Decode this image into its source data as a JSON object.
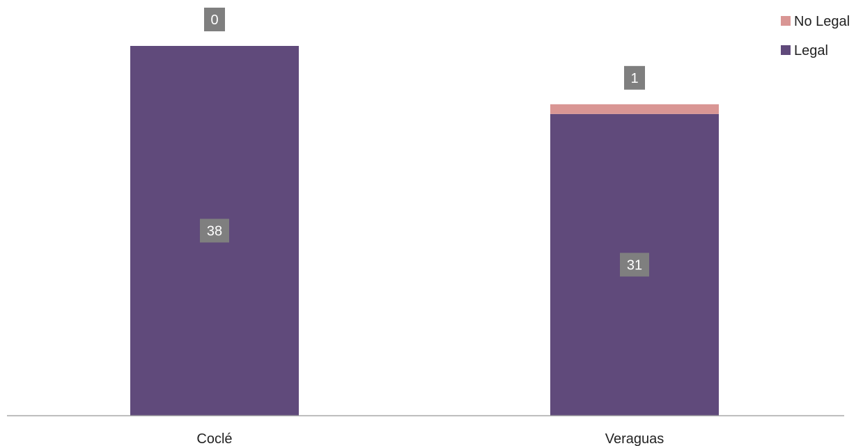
{
  "chart_data": {
    "type": "bar",
    "stacked": true,
    "categories": [
      "Coclé",
      "Veraguas"
    ],
    "series": [
      {
        "name": "Legal",
        "values": [
          38,
          31
        ],
        "color": "#604a7b"
      },
      {
        "name": "No Legal",
        "values": [
          0,
          1
        ],
        "color": "#d99694"
      }
    ],
    "data_labels": {
      "Legal": [
        "38",
        "31"
      ],
      "No Legal": [
        "0",
        "1"
      ]
    },
    "ylim": [
      0,
      40
    ],
    "grid": false,
    "legend_position": "top-right",
    "label_box_color": "#7f7f7f",
    "axis_color": "#a6a6a6"
  }
}
